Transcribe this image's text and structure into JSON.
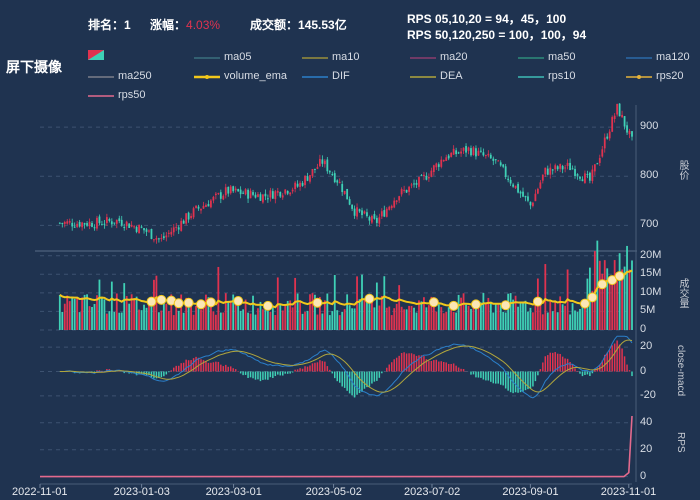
{
  "header": {
    "rank_label": "排名：",
    "rank_value": "1",
    "change_label": "涨幅：",
    "change_value": "4.03%",
    "turnover_label": "成交额：",
    "turnover_value": "145.53亿",
    "rps_short": "RPS 05,10,20 = 94，45，100",
    "rps_long": "RPS 50,120,250 = 100，100，94"
  },
  "title": "屏下摄像",
  "colors": {
    "up": "#e0334f",
    "down": "#3fd1b6",
    "volume_ema": "#f2c81b",
    "dif": "#2b7fc9",
    "dea": "#b1a63c",
    "rps": "#e36a8d",
    "background": "#1f3350"
  },
  "chart_data": [
    {
      "type": "candlestick",
      "ylabel": "股价",
      "yticks": [
        700,
        800,
        900
      ],
      "ylim": [
        650,
        945
      ],
      "date_range": [
        "2022-11-01",
        "2023-11-03"
      ],
      "legend": [
        "ma05",
        "ma10",
        "ma20",
        "ma50",
        "ma120",
        "ma250",
        "volume_ema",
        "DIF",
        "DEA",
        "rps10",
        "rps20",
        "rps50"
      ],
      "legend_colors": [
        "#3a6f7d",
        "#9a8f3a",
        "#8b3d6e",
        "#2e8c7b",
        "#2c6aa8",
        "#7b7e89",
        "#f2c81b",
        "#2b7fc9",
        "#b1a63c",
        "#3fbcb6",
        "#e3b23a",
        "#e36a8d"
      ],
      "close_keypoints": [
        [
          "2022-12-05",
          705
        ],
        [
          "2022-12-20",
          710
        ],
        [
          "2023-01-05",
          690
        ],
        [
          "2023-01-15",
          670
        ],
        [
          "2023-02-05",
          730
        ],
        [
          "2023-02-25",
          770
        ],
        [
          "2023-03-20",
          760
        ],
        [
          "2023-04-10",
          780
        ],
        [
          "2023-04-25",
          830
        ],
        [
          "2023-05-05",
          790
        ],
        [
          "2023-05-15",
          730
        ],
        [
          "2023-05-28",
          705
        ],
        [
          "2023-06-10",
          760
        ],
        [
          "2023-06-25",
          790
        ],
        [
          "2023-07-10",
          840
        ],
        [
          "2023-07-25",
          855
        ],
        [
          "2023-08-10",
          830
        ],
        [
          "2023-08-20",
          790
        ],
        [
          "2023-09-01",
          740
        ],
        [
          "2023-09-10",
          810
        ],
        [
          "2023-09-25",
          820
        ],
        [
          "2023-10-08",
          790
        ],
        [
          "2023-10-18",
          880
        ],
        [
          "2023-10-25",
          940
        ],
        [
          "2023-11-03",
          870
        ]
      ]
    },
    {
      "type": "bar",
      "ylabel": "成交量",
      "yticks": [
        "5M",
        "10M",
        "15M",
        "20M"
      ],
      "ylim": [
        0,
        21
      ],
      "unit": "M"
    },
    {
      "type": "bar+line",
      "ylabel": "close-macd",
      "yticks": [
        -20,
        0,
        20
      ],
      "ylim": [
        -30,
        30
      ]
    },
    {
      "type": "line",
      "ylabel": "RPS",
      "yticks": [
        0,
        20,
        40
      ],
      "ylim": [
        -4,
        48
      ],
      "values_note_points": [
        [
          "2022-11-01",
          0
        ],
        [
          "2023-10-29",
          0
        ],
        [
          "2023-11-01",
          3
        ],
        [
          "2023-11-03",
          45
        ]
      ]
    }
  ],
  "x_ticks": [
    "2022-11-01",
    "2023-01-03",
    "2023-03-01",
    "2023-05-02",
    "2023-07-02",
    "2023-09-01",
    "2023-11-01"
  ]
}
